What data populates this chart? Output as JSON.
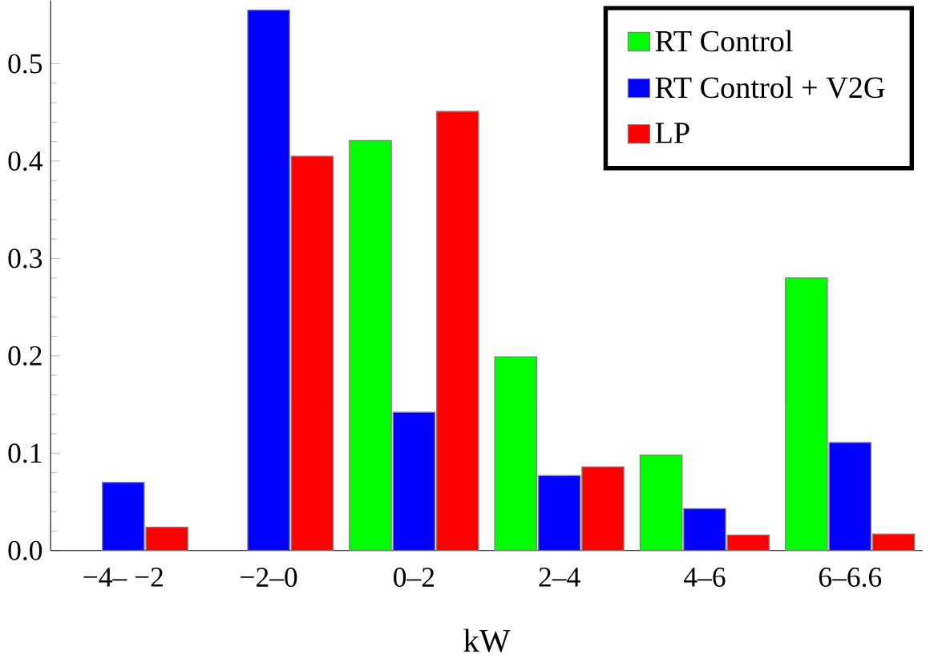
{
  "chart_data": {
    "type": "bar",
    "xlabel": "kW",
    "categories": [
      "−4– −2",
      "−2–0",
      "0–2",
      "2–4",
      "4–6",
      "6–6.6"
    ],
    "series": [
      {
        "name": "RT Control",
        "color": "#00ff00",
        "values": [
          null,
          null,
          0.421,
          0.199,
          0.098,
          0.28
        ]
      },
      {
        "name": "RT Control + V2G",
        "color": "#0000ff",
        "values": [
          0.07,
          0.555,
          0.142,
          0.077,
          0.043,
          0.111
        ]
      },
      {
        "name": "LP",
        "color": "#ff0000",
        "values": [
          0.024,
          0.405,
          0.451,
          0.086,
          0.016,
          0.017
        ]
      }
    ],
    "ylim": [
      0,
      0.565
    ],
    "yticks": [
      {
        "value": 0,
        "label": "0.0"
      },
      0.1,
      0.2,
      0.3,
      0.4,
      0.5
    ],
    "legend": "top right",
    "grid": false
  }
}
